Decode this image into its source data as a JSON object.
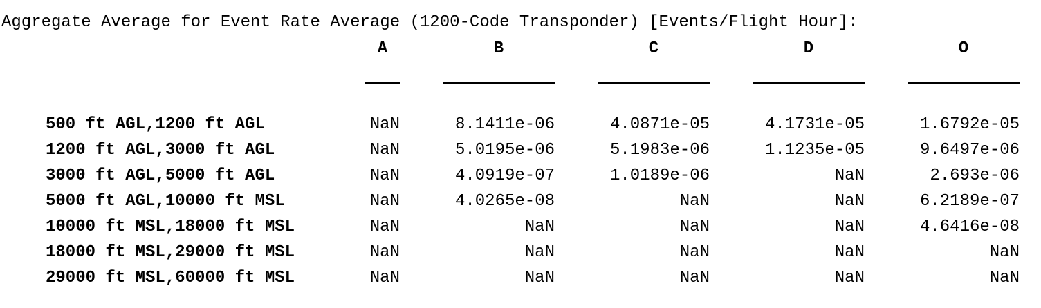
{
  "title": "Aggregate Average for Event Rate Average (1200-Code Transponder) [Events/Flight Hour]:",
  "columns": [
    "A",
    "B",
    "C",
    "D",
    "O"
  ],
  "rows": [
    {
      "label": "500 ft AGL,1200 ft AGL",
      "values": [
        "NaN",
        "8.1411e-06",
        "4.0871e-05",
        "4.1731e-05",
        "1.6792e-05"
      ]
    },
    {
      "label": "1200 ft AGL,3000 ft AGL",
      "values": [
        "NaN",
        "5.0195e-06",
        "5.1983e-06",
        "1.1235e-05",
        "9.6497e-06"
      ]
    },
    {
      "label": "3000 ft AGL,5000 ft AGL",
      "values": [
        "NaN",
        "4.0919e-07",
        "1.0189e-06",
        "NaN",
        "2.693e-06"
      ]
    },
    {
      "label": "5000 ft AGL,10000 ft MSL",
      "values": [
        "NaN",
        "4.0265e-08",
        "NaN",
        "NaN",
        "6.2189e-07"
      ]
    },
    {
      "label": "10000 ft MSL,18000 ft MSL",
      "values": [
        "NaN",
        "NaN",
        "NaN",
        "NaN",
        "4.6416e-08"
      ]
    },
    {
      "label": "18000 ft MSL,29000 ft MSL",
      "values": [
        "NaN",
        "NaN",
        "NaN",
        "NaN",
        "NaN"
      ]
    },
    {
      "label": "29000 ft MSL,60000 ft MSL",
      "values": [
        "NaN",
        "NaN",
        "NaN",
        "NaN",
        "NaN"
      ]
    }
  ]
}
